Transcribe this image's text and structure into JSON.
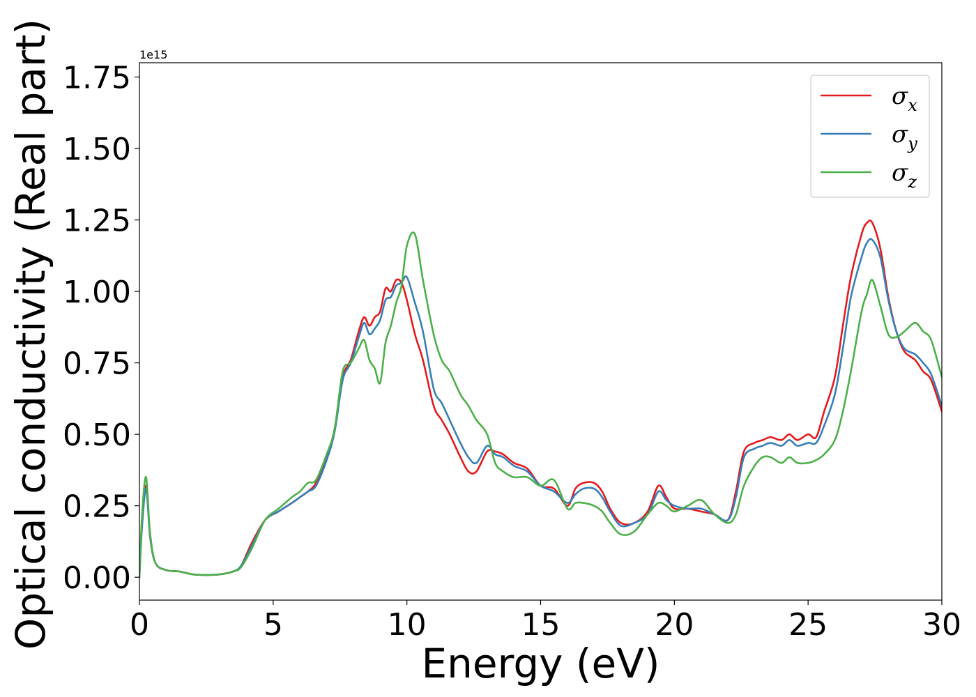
{
  "chart_data": {
    "type": "line",
    "xlabel": "Energy (eV)",
    "ylabel": "Optical conductivity (Real part)",
    "y_offset_label": "1e15",
    "xlim": [
      0,
      30
    ],
    "ylim": [
      -0.08,
      1.8
    ],
    "xticks": [
      0,
      5,
      10,
      15,
      20,
      25,
      30
    ],
    "xtick_labels": [
      "0",
      "5",
      "10",
      "15",
      "20",
      "25",
      "30"
    ],
    "yticks": [
      0,
      0.25,
      0.5,
      0.75,
      1.0,
      1.25,
      1.5,
      1.75
    ],
    "ytick_labels": [
      "0.00",
      "0.25",
      "0.50",
      "0.75",
      "1.00",
      "1.25",
      "1.50",
      "1.75"
    ],
    "grid": false,
    "legend_position": "top-right",
    "series": [
      {
        "name": "σx",
        "legend_base": "σ",
        "legend_sub": "x",
        "color": "#e41a1c",
        "x": [
          0,
          0.1,
          0.25,
          0.4,
          0.6,
          1,
          1.5,
          2,
          2.5,
          3,
          3.5,
          3.8,
          4.2,
          4.7,
          5.2,
          5.7,
          6,
          6.3,
          6.6,
          7,
          7.3,
          7.6,
          7.9,
          8.2,
          8.4,
          8.6,
          8.8,
          9,
          9.2,
          9.4,
          9.6,
          9.8,
          10,
          10.3,
          10.6,
          11,
          11.3,
          11.6,
          12,
          12.3,
          12.6,
          13,
          13.3,
          13.6,
          14,
          14.5,
          15,
          15.5,
          16,
          16.3,
          16.6,
          17,
          17.3,
          17.6,
          18,
          18.5,
          19,
          19.4,
          19.7,
          20,
          20.5,
          21,
          21.5,
          22,
          22.3,
          22.6,
          23,
          23.3,
          23.6,
          24,
          24.3,
          24.6,
          25,
          25.3,
          25.6,
          26,
          26.3,
          26.6,
          27,
          27.2,
          27.4,
          27.7,
          28,
          28.3,
          28.6,
          29,
          29.3,
          29.6,
          30
        ],
        "values": [
          0.0,
          0.2,
          0.32,
          0.15,
          0.05,
          0.025,
          0.02,
          0.01,
          0.008,
          0.01,
          0.02,
          0.04,
          0.12,
          0.2,
          0.23,
          0.26,
          0.28,
          0.3,
          0.33,
          0.42,
          0.52,
          0.7,
          0.76,
          0.86,
          0.91,
          0.88,
          0.91,
          0.93,
          1.01,
          1.0,
          1.04,
          1.03,
          0.97,
          0.85,
          0.76,
          0.6,
          0.55,
          0.5,
          0.42,
          0.37,
          0.37,
          0.44,
          0.44,
          0.43,
          0.4,
          0.38,
          0.32,
          0.31,
          0.25,
          0.31,
          0.33,
          0.33,
          0.3,
          0.24,
          0.19,
          0.19,
          0.23,
          0.32,
          0.28,
          0.24,
          0.24,
          0.23,
          0.22,
          0.2,
          0.3,
          0.44,
          0.47,
          0.48,
          0.49,
          0.48,
          0.5,
          0.48,
          0.5,
          0.49,
          0.58,
          0.7,
          0.88,
          1.05,
          1.2,
          1.24,
          1.24,
          1.15,
          0.98,
          0.86,
          0.79,
          0.76,
          0.72,
          0.69,
          0.58
        ]
      },
      {
        "name": "σy",
        "legend_base": "σ",
        "legend_sub": "y",
        "color": "#377eb8",
        "x": [
          0,
          0.1,
          0.25,
          0.4,
          0.6,
          1,
          1.5,
          2,
          2.5,
          3,
          3.5,
          3.8,
          4.2,
          4.7,
          5.2,
          5.7,
          6,
          6.3,
          6.6,
          7,
          7.3,
          7.6,
          7.9,
          8.2,
          8.4,
          8.6,
          8.8,
          9,
          9.2,
          9.4,
          9.6,
          9.8,
          10,
          10.3,
          10.6,
          11,
          11.3,
          11.6,
          12,
          12.3,
          12.6,
          13,
          13.3,
          13.6,
          14,
          14.5,
          15,
          15.5,
          16,
          16.3,
          16.6,
          17,
          17.3,
          17.6,
          18,
          18.5,
          19,
          19.4,
          19.7,
          20,
          20.5,
          21,
          21.5,
          22,
          22.3,
          22.6,
          23,
          23.3,
          23.6,
          24,
          24.3,
          24.6,
          25,
          25.3,
          25.6,
          26,
          26.3,
          26.6,
          27,
          27.2,
          27.4,
          27.7,
          28,
          28.3,
          28.6,
          29,
          29.3,
          29.6,
          30
        ],
        "values": [
          0.0,
          0.18,
          0.31,
          0.14,
          0.05,
          0.025,
          0.02,
          0.01,
          0.008,
          0.01,
          0.02,
          0.04,
          0.11,
          0.2,
          0.23,
          0.26,
          0.28,
          0.3,
          0.32,
          0.41,
          0.51,
          0.69,
          0.75,
          0.84,
          0.89,
          0.85,
          0.87,
          0.9,
          0.97,
          0.98,
          1.02,
          1.03,
          1.05,
          0.96,
          0.86,
          0.66,
          0.61,
          0.55,
          0.47,
          0.42,
          0.4,
          0.46,
          0.43,
          0.42,
          0.39,
          0.37,
          0.32,
          0.3,
          0.26,
          0.29,
          0.31,
          0.31,
          0.28,
          0.23,
          0.18,
          0.19,
          0.22,
          0.3,
          0.27,
          0.25,
          0.24,
          0.24,
          0.22,
          0.2,
          0.28,
          0.42,
          0.45,
          0.46,
          0.47,
          0.46,
          0.48,
          0.46,
          0.47,
          0.47,
          0.53,
          0.64,
          0.8,
          0.98,
          1.12,
          1.17,
          1.18,
          1.12,
          0.97,
          0.86,
          0.8,
          0.78,
          0.75,
          0.71,
          0.6
        ]
      },
      {
        "name": "σz",
        "legend_base": "σ",
        "legend_sub": "z",
        "color": "#4daf4a",
        "x": [
          0,
          0.1,
          0.25,
          0.4,
          0.6,
          1,
          1.5,
          2,
          2.5,
          3,
          3.5,
          3.8,
          4.2,
          4.7,
          5.2,
          5.7,
          6,
          6.3,
          6.6,
          7,
          7.3,
          7.6,
          7.9,
          8.2,
          8.4,
          8.6,
          8.8,
          9,
          9.2,
          9.4,
          9.6,
          9.8,
          10,
          10.3,
          10.6,
          11,
          11.3,
          11.6,
          12,
          12.3,
          12.6,
          13,
          13.3,
          13.6,
          14,
          14.5,
          15,
          15.5,
          16,
          16.3,
          16.6,
          17,
          17.3,
          17.6,
          18,
          18.5,
          19,
          19.4,
          19.7,
          20,
          20.5,
          21,
          21.5,
          22,
          22.3,
          22.6,
          23,
          23.3,
          23.6,
          24,
          24.3,
          24.6,
          25,
          25.3,
          25.6,
          26,
          26.3,
          26.6,
          27,
          27.2,
          27.4,
          27.7,
          28,
          28.3,
          28.6,
          29,
          29.3,
          29.6,
          30
        ],
        "values": [
          0.0,
          0.22,
          0.35,
          0.15,
          0.05,
          0.025,
          0.02,
          0.01,
          0.008,
          0.01,
          0.02,
          0.035,
          0.1,
          0.2,
          0.24,
          0.28,
          0.3,
          0.33,
          0.34,
          0.43,
          0.52,
          0.72,
          0.75,
          0.8,
          0.83,
          0.76,
          0.73,
          0.68,
          0.82,
          0.88,
          0.96,
          1.02,
          1.16,
          1.2,
          1.04,
          0.85,
          0.76,
          0.72,
          0.64,
          0.6,
          0.55,
          0.5,
          0.4,
          0.37,
          0.35,
          0.35,
          0.32,
          0.34,
          0.24,
          0.26,
          0.26,
          0.25,
          0.23,
          0.19,
          0.15,
          0.16,
          0.22,
          0.26,
          0.25,
          0.23,
          0.25,
          0.27,
          0.22,
          0.19,
          0.22,
          0.32,
          0.39,
          0.42,
          0.42,
          0.4,
          0.42,
          0.4,
          0.4,
          0.41,
          0.43,
          0.48,
          0.58,
          0.72,
          0.93,
          0.99,
          1.04,
          0.95,
          0.85,
          0.84,
          0.86,
          0.89,
          0.86,
          0.83,
          0.7
        ]
      }
    ]
  }
}
